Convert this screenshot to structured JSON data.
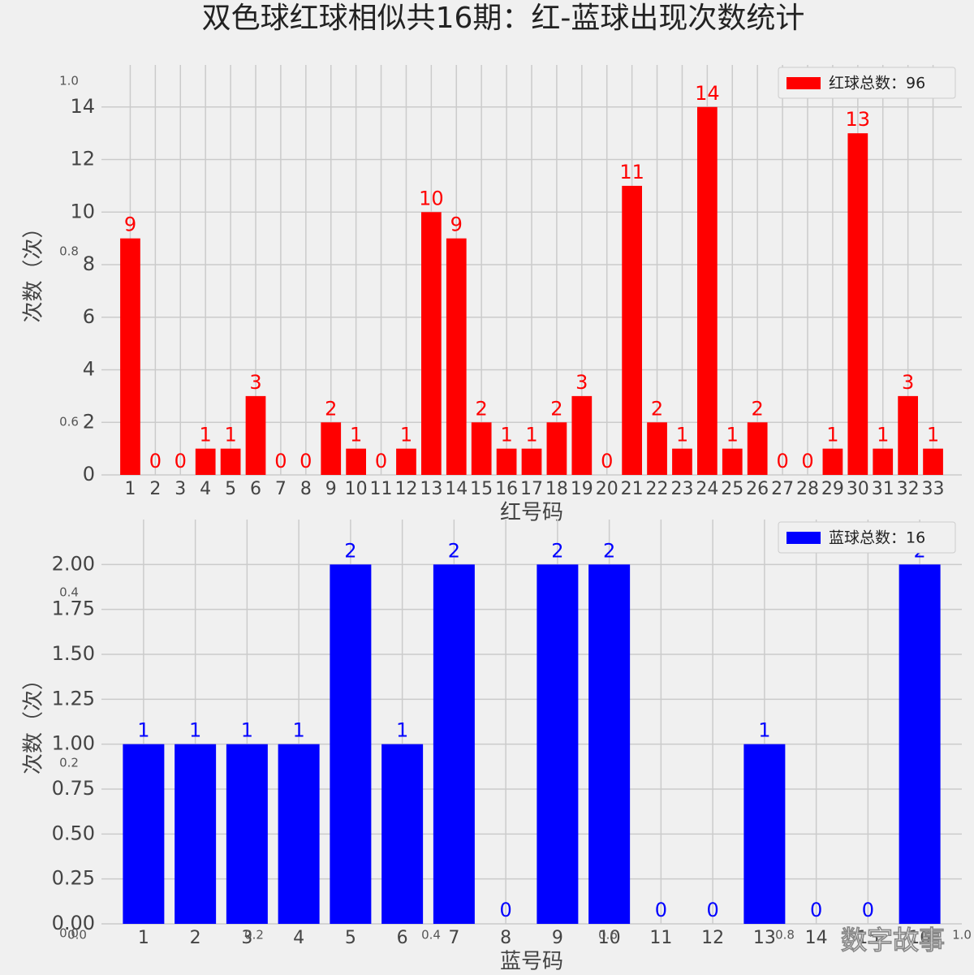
{
  "title": "双色球红球相似共16期：红-蓝球出现次数统计",
  "watermark": "数字故事",
  "chart_data": [
    {
      "type": "bar",
      "legend": "红球总数：96",
      "legend_position": "upper right",
      "xlabel": "红号码",
      "ylabel": "次数（次）",
      "color": "#ff0000",
      "categories": [
        "1",
        "2",
        "3",
        "4",
        "5",
        "6",
        "7",
        "8",
        "9",
        "10",
        "11",
        "12",
        "13",
        "14",
        "15",
        "16",
        "17",
        "18",
        "19",
        "20",
        "21",
        "22",
        "23",
        "24",
        "25",
        "26",
        "27",
        "28",
        "29",
        "30",
        "31",
        "32",
        "33"
      ],
      "values": [
        9,
        0,
        0,
        1,
        1,
        3,
        0,
        0,
        2,
        1,
        0,
        1,
        10,
        9,
        2,
        1,
        1,
        2,
        3,
        0,
        11,
        2,
        1,
        14,
        1,
        2,
        0,
        0,
        1,
        13,
        1,
        3,
        1
      ],
      "ylim": [
        0,
        15.6
      ],
      "yticks": [
        0,
        2,
        4,
        6,
        8,
        10,
        12,
        14
      ],
      "grid": true
    },
    {
      "type": "bar",
      "legend": "蓝球总数：16",
      "legend_position": "upper right",
      "xlabel": "蓝号码",
      "ylabel": "次数（次）",
      "color": "#0000ff",
      "categories": [
        "1",
        "2",
        "3",
        "4",
        "5",
        "6",
        "7",
        "8",
        "9",
        "10",
        "11",
        "12",
        "13",
        "14",
        "15",
        "16"
      ],
      "values": [
        1,
        1,
        1,
        1,
        2,
        1,
        2,
        0,
        2,
        2,
        0,
        0,
        1,
        0,
        0,
        2
      ],
      "ylim": [
        0,
        2.25
      ],
      "yticks": [
        {
          "value": 0,
          "label": "0.00"
        },
        {
          "value": 0.25,
          "label": "0.25"
        },
        {
          "value": 0.5,
          "label": "0.50"
        },
        {
          "value": 0.75,
          "label": "0.75"
        },
        {
          "value": 1,
          "label": "1.00"
        },
        {
          "value": 1.25,
          "label": "1.25"
        },
        {
          "value": 1.5,
          "label": "1.50"
        },
        {
          "value": 1.75,
          "label": "1.75"
        },
        {
          "value": 2,
          "label": "2.00"
        }
      ],
      "grid": true
    },
    {
      "type": "axes",
      "xlim": [
        0,
        1
      ],
      "ylim": [
        0,
        1
      ],
      "xticks": [
        {
          "value": 0,
          "label": "0.0"
        },
        0.2,
        0.4,
        0.6,
        0.8,
        {
          "value": 1,
          "label": "1.0"
        }
      ],
      "yticks": [
        {
          "value": 0,
          "label": "0.0"
        },
        0.2,
        0.4,
        0.6,
        0.8,
        {
          "value": 1,
          "label": "1.0"
        }
      ]
    }
  ]
}
